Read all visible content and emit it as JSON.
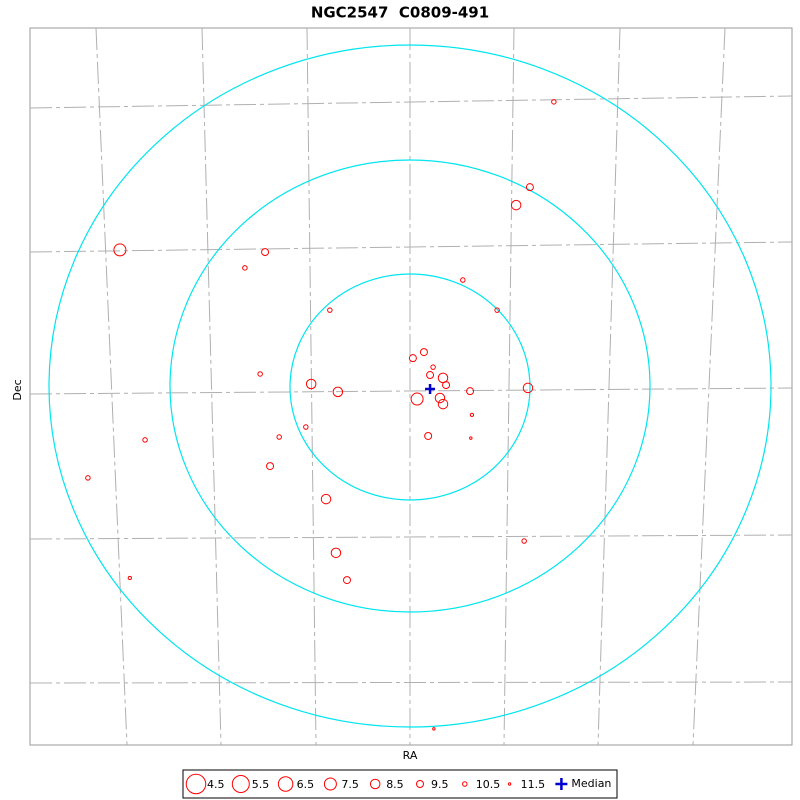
{
  "chart_data": {
    "type": "scatter",
    "title": "NGC2547  C0809-491",
    "xlabel": "RA",
    "ylabel": "Dec",
    "xlim": [
      -1,
      1
    ],
    "ylim": [
      -1,
      1
    ],
    "color": "#ff0000",
    "x": [
      0.375,
      0.312,
      0.276,
      -0.764,
      -0.383,
      -0.436,
      0.136,
      -0.213,
      0.226,
      0.034,
      0.005,
      0.058,
      0.05,
      0.084,
      0.092,
      -0.396,
      -0.262,
      -0.192,
      0.155,
      0.307,
      0.016,
      0.076,
      0.084,
      0.16,
      -0.698,
      -0.346,
      -0.276,
      0.045,
      0.157,
      -0.37,
      -0.848,
      -0.223,
      0.297,
      -0.197,
      -0.738,
      -0.168,
      0.06
    ],
    "y": [
      0.794,
      0.556,
      0.506,
      0.381,
      0.375,
      0.331,
      0.297,
      0.213,
      0.213,
      0.096,
      0.079,
      0.054,
      0.032,
      0.024,
      0.004,
      0.035,
      0.007,
      -0.015,
      -0.013,
      -0.004,
      -0.035,
      -0.032,
      -0.049,
      -0.079,
      -0.149,
      -0.141,
      -0.113,
      -0.138,
      -0.144,
      -0.222,
      -0.255,
      -0.314,
      -0.431,
      -0.464,
      -0.534,
      -0.54,
      -0.955
    ],
    "sizes": [
      10.5,
      9.5,
      8.5,
      7.5,
      9.5,
      10.5,
      10.5,
      10.5,
      10.5,
      9.5,
      9.5,
      10.5,
      9.5,
      8.5,
      9.5,
      10.5,
      8.5,
      8.5,
      9.5,
      8.5,
      7.5,
      8.5,
      8.5,
      11,
      10.5,
      10.5,
      10.5,
      9.5,
      11.5,
      9.5,
      10.5,
      8.5,
      10.5,
      8.5,
      11,
      9.5,
      11.5
    ],
    "legend_sizes": [
      4.5,
      5.5,
      6.5,
      7.5,
      8.5,
      9.5,
      10.5,
      11.5
    ],
    "median": {
      "label": "Median",
      "x": 0.05,
      "y": -0.007,
      "color": "#0000cc"
    }
  }
}
